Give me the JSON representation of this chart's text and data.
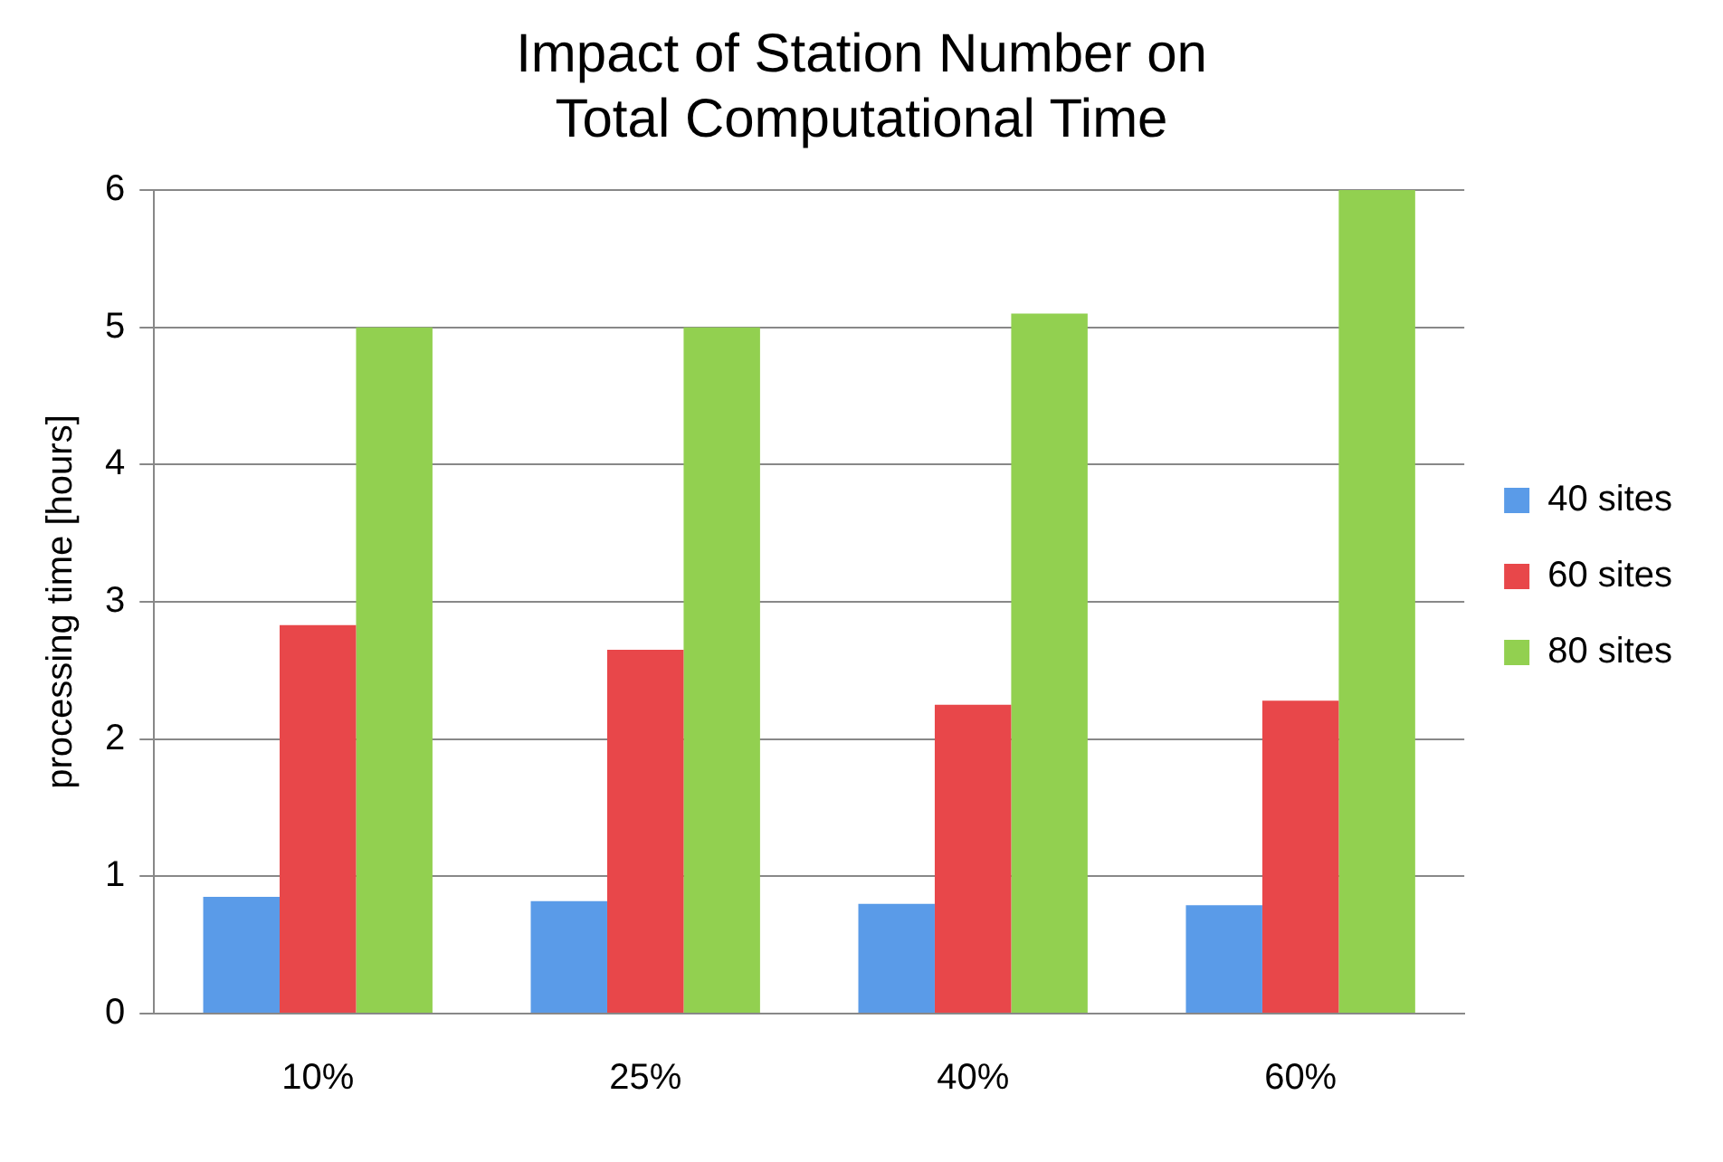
{
  "chart_data": {
    "type": "bar",
    "title": "Impact of Station Number on\nTotal Computational Time",
    "ylabel": "processing time [hours]",
    "categories": [
      "10%",
      "25%",
      "40%",
      "60%"
    ],
    "series": [
      {
        "name": "40 sites",
        "color": "#5a9be8",
        "values": [
          0.85,
          0.82,
          0.8,
          0.79
        ]
      },
      {
        "name": "60 sites",
        "color": "#e8474a",
        "values": [
          2.83,
          2.65,
          2.25,
          2.28
        ]
      },
      {
        "name": "80 sites",
        "color": "#92d050",
        "values": [
          5.0,
          5.0,
          5.1,
          6.0
        ]
      }
    ],
    "ylim": [
      0,
      6
    ],
    "yticks": [
      0,
      1,
      2,
      3,
      4,
      5,
      6
    ],
    "grid": "y",
    "legend": "right"
  }
}
